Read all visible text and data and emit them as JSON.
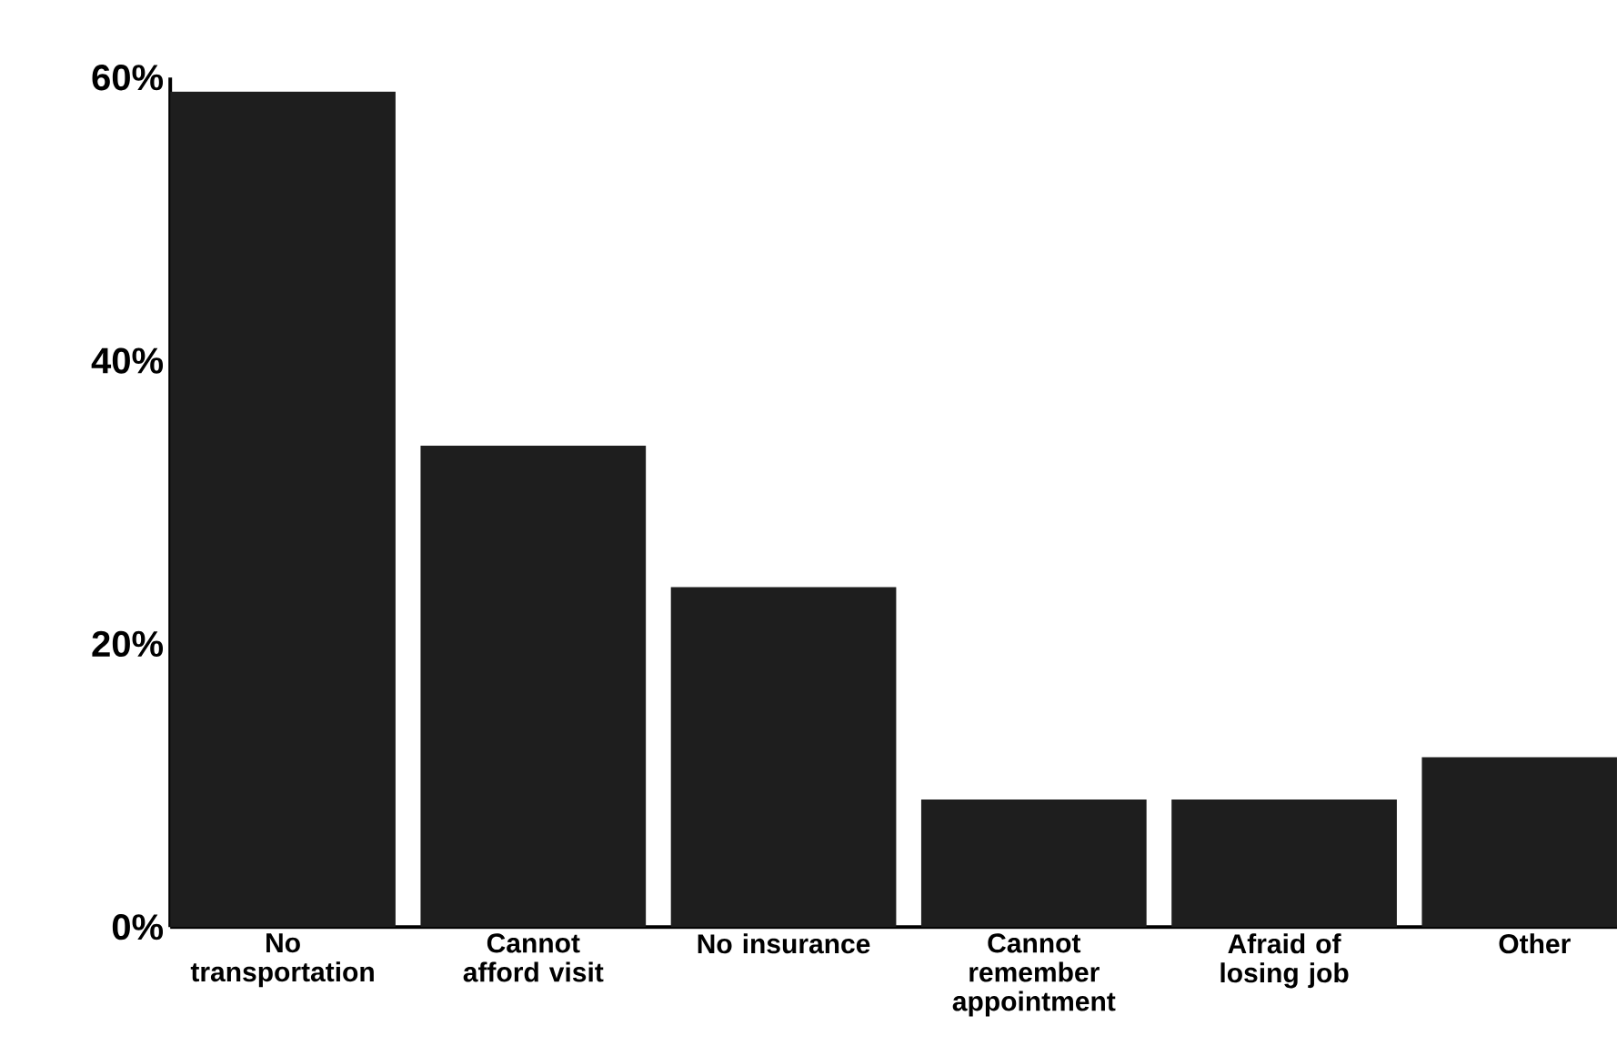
{
  "chart_data": {
    "type": "bar",
    "categories": [
      "No transportation",
      "Cannot afford visit",
      "No insurance",
      "Cannot remember appointment",
      "Afraid of losing job",
      "Other"
    ],
    "values": [
      59,
      34,
      24,
      9,
      9,
      12
    ],
    "color": "#1e1e1e",
    "ylim": [
      0,
      60
    ],
    "yticks": [
      {
        "value": 0,
        "label": "0%"
      },
      {
        "value": 20,
        "label": "20%"
      },
      {
        "value": 40,
        "label": "40%"
      },
      {
        "value": 60,
        "label": "60%"
      }
    ],
    "grid": false
  }
}
